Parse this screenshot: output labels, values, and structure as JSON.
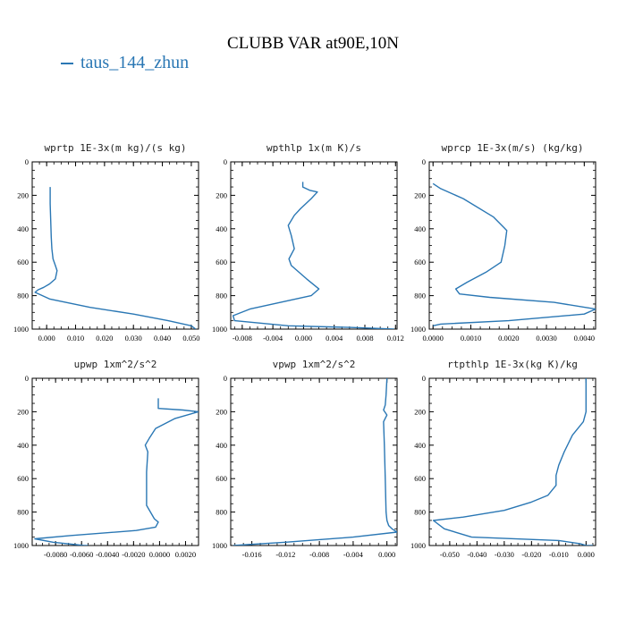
{
  "page": {
    "title": "CLUBB VAR at90E,10N"
  },
  "legend": {
    "label": "taus_144_zhun",
    "color": "#2a77b4"
  },
  "chart_data": [
    {
      "type": "line",
      "title": "wprtp  1E-3x(m kg)/(s kg)",
      "xlim": [
        -0.005,
        0.0525
      ],
      "ylim": [
        1000,
        0
      ],
      "xticks": [
        0.0,
        0.01,
        0.02,
        0.03,
        0.04,
        0.05
      ],
      "xticklabels": [
        "0.000",
        "0.010",
        "0.020",
        "0.030",
        "0.040",
        "0.050"
      ],
      "yticks": [
        0,
        200,
        400,
        600,
        800,
        1000
      ],
      "yticklabels": [
        "0",
        "200",
        "400",
        "600",
        "800",
        "1000"
      ],
      "series": [
        {
          "x": [
            0.0012,
            0.0012,
            0.0014,
            0.0016,
            0.0018,
            0.0022,
            0.003,
            0.0036,
            0.003,
            0.001,
            -0.001,
            -0.003,
            -0.004,
            0.001,
            0.015,
            0.03,
            0.042,
            0.05,
            0.0515
          ],
          "y": [
            150,
            250,
            350,
            450,
            520,
            580,
            620,
            650,
            700,
            730,
            750,
            765,
            780,
            820,
            870,
            910,
            950,
            980,
            1000
          ]
        }
      ]
    },
    {
      "type": "line",
      "title": "wpthlp  1x(m K)/s",
      "xlim": [
        -0.0095,
        0.0122
      ],
      "ylim": [
        1000,
        0
      ],
      "xticks": [
        -0.008,
        -0.004,
        0.0,
        0.004,
        0.008,
        0.012
      ],
      "xticklabels": [
        "-0.008",
        "-0.004",
        "0.000",
        "0.004",
        "0.008",
        "0.012"
      ],
      "yticks": [
        0,
        200,
        400,
        600,
        800,
        1000
      ],
      "yticklabels": [
        "0",
        "200",
        "400",
        "600",
        "800",
        "1000"
      ],
      "series": [
        {
          "x": [
            -0.0001,
            -0.0001,
            0.0008,
            0.0018,
            0.001,
            -0.0004,
            -0.0012,
            -0.002,
            -0.0016,
            -0.0012,
            -0.0019,
            -0.0016,
            -0.0006,
            0.0004,
            0.002,
            0.001,
            -0.003,
            -0.007,
            -0.0092,
            -0.009,
            -0.002,
            0.006,
            0.0118
          ],
          "y": [
            120,
            150,
            170,
            180,
            220,
            280,
            320,
            380,
            440,
            520,
            580,
            620,
            660,
            700,
            760,
            800,
            840,
            880,
            920,
            950,
            980,
            990,
            1000
          ]
        }
      ]
    },
    {
      "type": "line",
      "title": "wprcp  1E-3x(m/s) (kg/kg)",
      "xlim": [
        -0.0001,
        0.0043
      ],
      "ylim": [
        1000,
        0
      ],
      "xticks": [
        0.0,
        0.001,
        0.002,
        0.003,
        0.004
      ],
      "xticklabels": [
        "0.0000",
        "0.0010",
        "0.0020",
        "0.0030",
        "0.0040"
      ],
      "yticks": [
        0,
        200,
        400,
        600,
        800,
        1000
      ],
      "yticklabels": [
        "0",
        "200",
        "400",
        "600",
        "800",
        "1000"
      ],
      "series": [
        {
          "x": [
            0.0,
            0.0002,
            0.0008,
            0.0016,
            0.00195,
            0.0019,
            0.0018,
            0.0014,
            0.0009,
            0.0006,
            0.0007,
            0.0015,
            0.0032,
            0.0043,
            0.004,
            0.002,
            0.0002,
            0.0
          ],
          "y": [
            130,
            160,
            220,
            330,
            410,
            500,
            600,
            660,
            720,
            760,
            790,
            810,
            840,
            880,
            910,
            950,
            970,
            980
          ]
        }
      ]
    },
    {
      "type": "line",
      "title": "upwp  1xm^2/s^2",
      "xlim": [
        -0.0098,
        0.003
      ],
      "ylim": [
        1000,
        0
      ],
      "xticks": [
        -0.008,
        -0.006,
        -0.004,
        -0.002,
        0.0,
        0.002
      ],
      "xticklabels": [
        "-0.0080",
        "-0.0060",
        "-0.0040",
        "-0.0020",
        "0.0000",
        "0.0020"
      ],
      "yticks": [
        0,
        200,
        400,
        600,
        800,
        1000
      ],
      "yticklabels": [
        "0",
        "200",
        "400",
        "600",
        "800",
        "1000"
      ],
      "series": [
        {
          "x": [
            -0.0001,
            -0.0001,
            0.0018,
            0.003,
            0.0012,
            -0.0003,
            -0.0008,
            -0.0011,
            -0.0009,
            -0.001,
            -0.001,
            -0.0004,
            -0.0001,
            -0.0003,
            -0.0018,
            -0.0068,
            -0.0096,
            -0.0082,
            -0.0058,
            -0.0055
          ],
          "y": [
            120,
            180,
            190,
            200,
            240,
            300,
            360,
            400,
            440,
            560,
            760,
            840,
            860,
            890,
            910,
            940,
            960,
            980,
            1000,
            1000
          ]
        }
      ]
    },
    {
      "type": "line",
      "title": "vpwp  1xm^2/s^2",
      "xlim": [
        -0.0185,
        0.0012
      ],
      "ylim": [
        1000,
        0
      ],
      "xticks": [
        -0.016,
        -0.012,
        -0.008,
        -0.004,
        0.0
      ],
      "xticklabels": [
        "-0.016",
        "-0.012",
        "-0.008",
        "-0.004",
        "0.000"
      ],
      "yticks": [
        0,
        200,
        400,
        600,
        800,
        1000
      ],
      "yticklabels": [
        "0",
        "200",
        "400",
        "600",
        "800",
        "1000"
      ],
      "series": [
        {
          "x": [
            0.0,
            -0.0001,
            -0.0002,
            -0.0004,
            0.0,
            -0.0004,
            -0.0003,
            -0.0002,
            -0.0001,
            0.0,
            0.0002,
            0.0006,
            0.0012,
            -0.004,
            -0.012,
            -0.0182
          ],
          "y": [
            0,
            100,
            160,
            190,
            220,
            260,
            400,
            600,
            800,
            850,
            880,
            900,
            920,
            950,
            980,
            1000
          ]
        }
      ]
    },
    {
      "type": "line",
      "title": "rtpthlp  1E-3x(kg K)/kg",
      "xlim": [
        -0.0575,
        0.0035
      ],
      "ylim": [
        1000,
        0
      ],
      "xticks": [
        -0.05,
        -0.04,
        -0.03,
        -0.02,
        -0.01,
        0.0
      ],
      "xticklabels": [
        "-0.050",
        "-0.040",
        "-0.030",
        "-0.020",
        "-0.010",
        "0.000"
      ],
      "yticks": [
        0,
        200,
        400,
        600,
        800,
        1000
      ],
      "yticklabels": [
        "0",
        "200",
        "400",
        "600",
        "800",
        "1000"
      ],
      "series": [
        {
          "x": [
            0.0,
            0.0,
            -0.001,
            -0.005,
            -0.008,
            -0.01,
            -0.011,
            -0.011,
            -0.014,
            -0.02,
            -0.03,
            -0.045,
            -0.056,
            -0.052,
            -0.042,
            -0.01,
            -0.002,
            0.0,
            0.0025
          ],
          "y": [
            0,
            200,
            260,
            340,
            440,
            520,
            580,
            640,
            700,
            740,
            790,
            830,
            850,
            900,
            950,
            970,
            990,
            1000,
            1000
          ]
        }
      ]
    }
  ]
}
